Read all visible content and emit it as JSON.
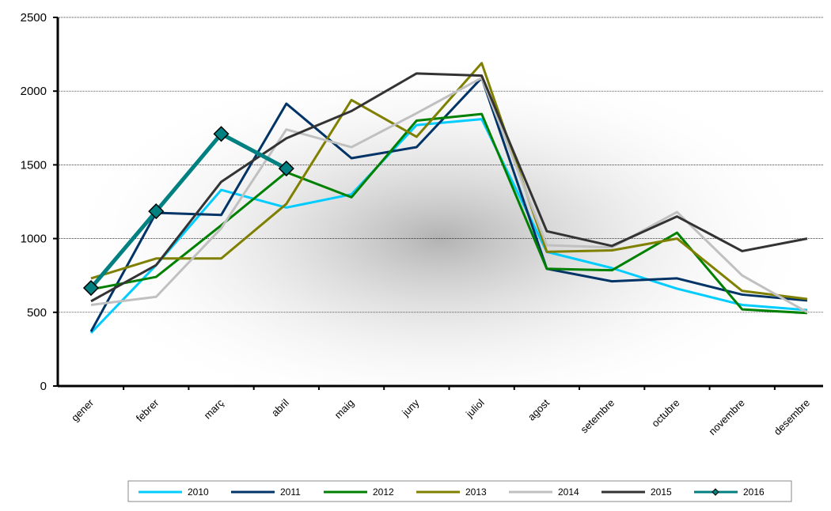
{
  "chart_data": {
    "type": "line",
    "categories": [
      "gener",
      "febrer",
      "març",
      "abril",
      "maig",
      "juny",
      "juliol",
      "agost",
      "setembre",
      "octubre",
      "novembre",
      "desembre"
    ],
    "series": [
      {
        "name": "2010",
        "color": "#00ccff",
        "values": [
          360,
          820,
          1330,
          1210,
          1300,
          1770,
          1810,
          910,
          800,
          660,
          550,
          515
        ]
      },
      {
        "name": "2011",
        "color": "#003366",
        "values": [
          370,
          1175,
          1160,
          1915,
          1545,
          1620,
          2090,
          795,
          710,
          730,
          620,
          580
        ]
      },
      {
        "name": "2012",
        "color": "#008000",
        "values": [
          655,
          740,
          1090,
          1450,
          1280,
          1800,
          1845,
          795,
          785,
          1040,
          520,
          495
        ]
      },
      {
        "name": "2013",
        "color": "#808000",
        "values": [
          730,
          865,
          865,
          1235,
          1940,
          1690,
          2190,
          910,
          920,
          1000,
          645,
          590
        ]
      },
      {
        "name": "2014",
        "color": "#c0c0c0",
        "values": [
          550,
          605,
          1070,
          1740,
          1620,
          1850,
          2090,
          955,
          940,
          1180,
          750,
          500
        ]
      },
      {
        "name": "2015",
        "color": "#333333",
        "values": [
          575,
          820,
          1385,
          1680,
          1865,
          2120,
          2105,
          1050,
          950,
          1150,
          915,
          1000
        ]
      },
      {
        "name": "2016",
        "color": "#008080",
        "marker": "diamond",
        "values": [
          665,
          1185,
          1710,
          1475,
          null,
          null,
          null,
          null,
          null,
          null,
          null,
          null
        ]
      }
    ],
    "ylim": [
      0,
      2500
    ],
    "yticks": [
      0,
      500,
      1000,
      1500,
      2000,
      2500
    ],
    "grid": true,
    "legend": "bottom"
  }
}
